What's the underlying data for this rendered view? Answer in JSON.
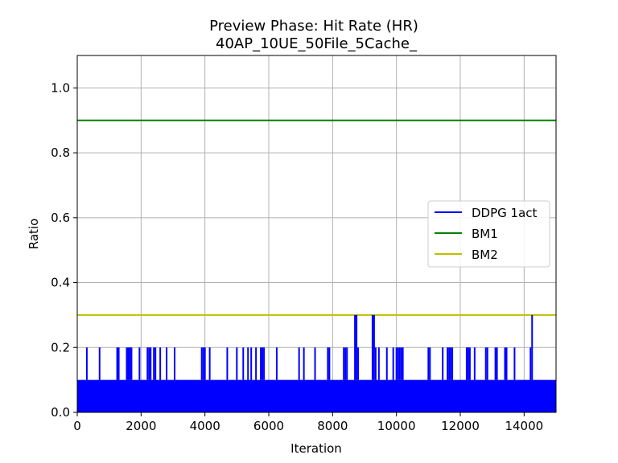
{
  "chart_data": {
    "type": "line",
    "title": "Preview Phase: Hit Rate (HR)",
    "subtitle": "40AP_10UE_50File_5Cache_",
    "xlabel": "Iteration",
    "ylabel": "Ratio",
    "xlim": [
      0,
      15000
    ],
    "ylim": [
      0,
      1.1
    ],
    "x_ticks": [
      0,
      2000,
      4000,
      6000,
      8000,
      10000,
      12000,
      14000
    ],
    "x_tick_labels": [
      "0",
      "2000",
      "4000",
      "6000",
      "8000",
      "10000",
      "12000",
      "14000"
    ],
    "y_ticks": [
      0.0,
      0.2,
      0.4,
      0.6,
      0.8,
      1.0
    ],
    "y_tick_labels": [
      "0.0",
      "0.2",
      "0.4",
      "0.6",
      "0.8",
      "1.0"
    ],
    "grid": true,
    "legend_position": "center-right",
    "series": [
      {
        "name": "DDPG 1act",
        "color": "#0000ff",
        "description_values": [
          0.0,
          0.1,
          0.2,
          0.3
        ],
        "spikes_0_2": [
          300,
          700,
          1250,
          1300,
          1550,
          1600,
          1650,
          1700,
          1950,
          2200,
          2250,
          2300,
          2400,
          2450,
          2600,
          2800,
          3050,
          3900,
          3950,
          4000,
          4150,
          4700,
          5000,
          5200,
          5350,
          5450,
          5600,
          5750,
          5800,
          5850,
          6250,
          6950,
          7100,
          7450,
          7850,
          7900,
          8350,
          8400,
          8450,
          8800,
          9350,
          9450,
          9700,
          9900,
          10000,
          10050,
          10100,
          10150,
          10200,
          11000,
          11050,
          11450,
          11600,
          11650,
          11700,
          11750,
          12200,
          12250,
          12300,
          12450,
          12800,
          12850,
          13100,
          13150,
          13400,
          13450,
          13700,
          14200
        ],
        "spikes_0_3": [
          8700,
          8750,
          9250,
          9300,
          14250
        ]
      },
      {
        "name": "BM1",
        "color": "#008000",
        "values": [
          0.9,
          0.9
        ],
        "x": [
          0,
          15000
        ]
      },
      {
        "name": "BM2",
        "color": "#bfbf00",
        "values": [
          0.3,
          0.3
        ],
        "x": [
          0,
          15000
        ]
      }
    ]
  }
}
